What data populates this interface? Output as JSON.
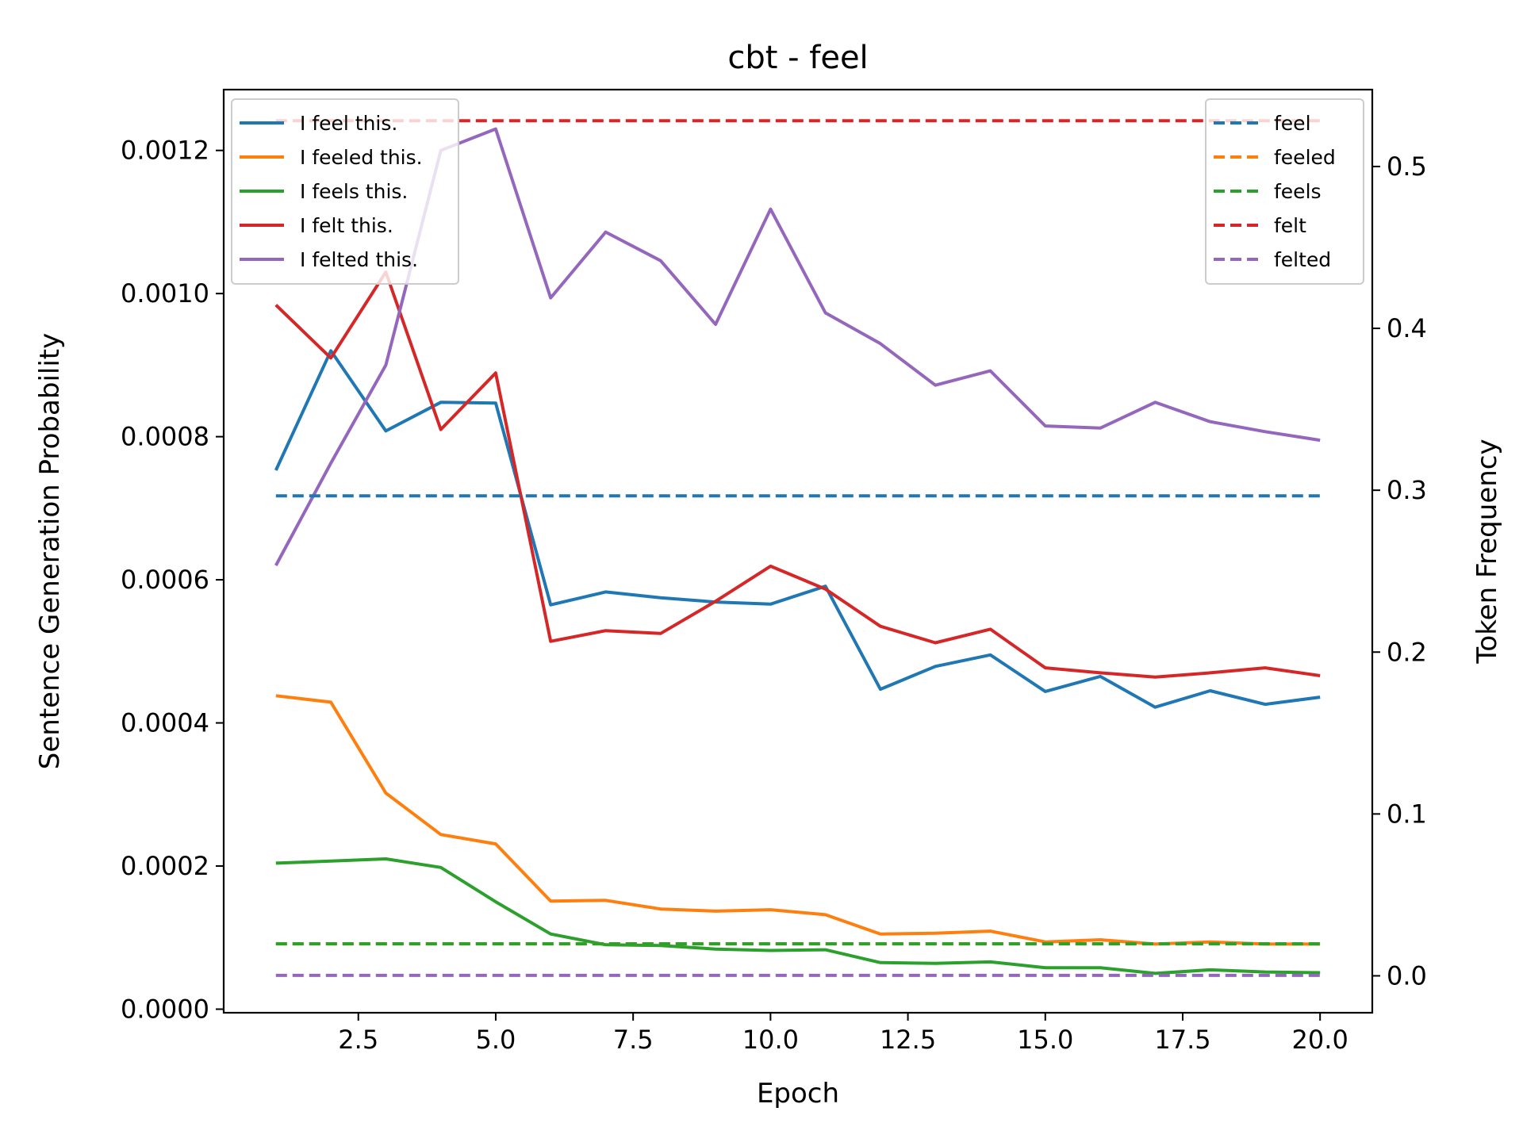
{
  "chart_data": {
    "type": "line",
    "title": "cbt - feel",
    "xlabel": "Epoch",
    "ylabel": "Sentence Generation Probability",
    "y2label": "Token Frequency",
    "xlim": [
      0.05,
      20.95
    ],
    "ylim": [
      -5e-06,
      0.001285
    ],
    "y2lim": [
      -0.0228,
      0.5475
    ],
    "xticks": [
      2.5,
      5.0,
      7.5,
      10.0,
      12.5,
      15.0,
      17.5,
      20.0
    ],
    "xtick_labels": [
      "2.5",
      "5.0",
      "7.5",
      "10.0",
      "12.5",
      "15.0",
      "17.5",
      "20.0"
    ],
    "yticks": [
      0.0,
      0.0002,
      0.0004,
      0.0006,
      0.0008,
      0.001,
      0.0012
    ],
    "ytick_labels": [
      "0.0000",
      "0.0002",
      "0.0004",
      "0.0006",
      "0.0008",
      "0.0010",
      "0.0012"
    ],
    "y2ticks": [
      0.0,
      0.1,
      0.2,
      0.3,
      0.4,
      0.5
    ],
    "y2tick_labels": [
      "0.0",
      "0.1",
      "0.2",
      "0.3",
      "0.4",
      "0.5"
    ],
    "grid": false,
    "legend_left": "top-left",
    "legend_right": "top-right",
    "x": [
      1,
      2,
      3,
      4,
      5,
      6,
      7,
      8,
      9,
      10,
      11,
      12,
      13,
      14,
      15,
      16,
      17,
      18,
      19,
      20
    ],
    "series": [
      {
        "name": "I feel this.",
        "color": "#1f77b4",
        "axis": "left",
        "values": [
          0.000753,
          0.00092,
          0.000808,
          0.000848,
          0.000847,
          0.000565,
          0.000583,
          0.000575,
          0.000569,
          0.000566,
          0.000591,
          0.000447,
          0.000479,
          0.000495,
          0.000444,
          0.000465,
          0.000422,
          0.000445,
          0.000426,
          0.000436
        ]
      },
      {
        "name": "I feeled this.",
        "color": "#ff7f0e",
        "axis": "left",
        "values": [
          0.000438,
          0.000429,
          0.000302,
          0.000244,
          0.000231,
          0.000151,
          0.000152,
          0.00014,
          0.000137,
          0.000139,
          0.000132,
          0.000105,
          0.000106,
          0.000109,
          9.4e-05,
          9.7e-05,
          9.1e-05,
          9.4e-05,
          9.1e-05,
          9.1e-05
        ]
      },
      {
        "name": "I feels this.",
        "color": "#2ca02c",
        "axis": "left",
        "values": [
          0.000204,
          0.000207,
          0.00021,
          0.000198,
          0.00015,
          0.000105,
          9e-05,
          8.9e-05,
          8.4e-05,
          8.2e-05,
          8.3e-05,
          6.5e-05,
          6.4e-05,
          6.6e-05,
          5.8e-05,
          5.8e-05,
          5e-05,
          5.5e-05,
          5.2e-05,
          5.1e-05
        ]
      },
      {
        "name": "I felt this.",
        "color": "#d62728",
        "axis": "left",
        "values": [
          0.000984,
          0.00091,
          0.00103,
          0.00081,
          0.000889,
          0.000514,
          0.000529,
          0.000525,
          0.00057,
          0.000619,
          0.000587,
          0.000535,
          0.000512,
          0.000531,
          0.000477,
          0.00047,
          0.000464,
          0.00047,
          0.000477,
          0.000466
        ]
      },
      {
        "name": "I felted this.",
        "color": "#9467bd",
        "axis": "left",
        "values": [
          0.00062,
          0.000763,
          0.0009,
          0.0012,
          0.00123,
          0.000994,
          0.001086,
          0.001046,
          0.000957,
          0.001118,
          0.000973,
          0.00093,
          0.000872,
          0.000892,
          0.000815,
          0.000812,
          0.000848,
          0.000821,
          0.000807,
          0.000795
        ]
      },
      {
        "name": "feel",
        "color": "#1f77b4",
        "axis": "right",
        "dashed": true,
        "values": [
          0.2965,
          0.2965,
          0.2965,
          0.2965,
          0.2965,
          0.2965,
          0.2965,
          0.2965,
          0.2965,
          0.2965,
          0.2965,
          0.2965,
          0.2965,
          0.2965,
          0.2965,
          0.2965,
          0.2965,
          0.2965,
          0.2965,
          0.2965
        ]
      },
      {
        "name": "feeled",
        "color": "#ff7f0e",
        "axis": "right",
        "dashed": true,
        "values": [
          0.0198,
          0.0198,
          0.0198,
          0.0198,
          0.0198,
          0.0198,
          0.0198,
          0.0198,
          0.0198,
          0.0198,
          0.0198,
          0.0198,
          0.0198,
          0.0198,
          0.0198,
          0.0198,
          0.0198,
          0.0198,
          0.0198,
          0.0198
        ]
      },
      {
        "name": "feels",
        "color": "#2ca02c",
        "axis": "right",
        "dashed": true,
        "values": [
          0.0198,
          0.0198,
          0.0198,
          0.0198,
          0.0198,
          0.0198,
          0.0198,
          0.0198,
          0.0198,
          0.0198,
          0.0198,
          0.0198,
          0.0198,
          0.0198,
          0.0198,
          0.0198,
          0.0198,
          0.0198,
          0.0198,
          0.0198
        ]
      },
      {
        "name": "felt",
        "color": "#d62728",
        "axis": "right",
        "dashed": true,
        "values": [
          0.5283,
          0.5283,
          0.5283,
          0.5283,
          0.5283,
          0.5283,
          0.5283,
          0.5283,
          0.5283,
          0.5283,
          0.5283,
          0.5283,
          0.5283,
          0.5283,
          0.5283,
          0.5283,
          0.5283,
          0.5283,
          0.5283,
          0.5283
        ]
      },
      {
        "name": "felted",
        "color": "#9467bd",
        "axis": "right",
        "dashed": true,
        "values": [
          0.0003,
          0.0003,
          0.0003,
          0.0003,
          0.0003,
          0.0003,
          0.0003,
          0.0003,
          0.0003,
          0.0003,
          0.0003,
          0.0003,
          0.0003,
          0.0003,
          0.0003,
          0.0003,
          0.0003,
          0.0003,
          0.0003,
          0.0003
        ]
      }
    ]
  }
}
